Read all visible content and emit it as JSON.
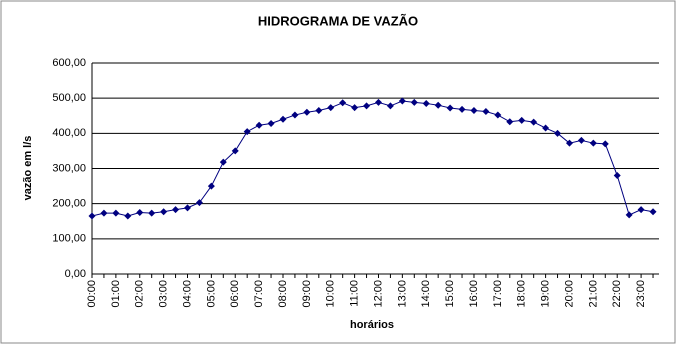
{
  "chart_data": {
    "type": "line",
    "title": "HIDROGRAMA DE VAZÃO",
    "x_label": "horários",
    "y_label": "vazão em l/s",
    "categories": [
      "00:00",
      null,
      "01:00",
      null,
      "02:00",
      null,
      "03:00",
      null,
      "04:00",
      null,
      "05:00",
      null,
      "06:00",
      null,
      "07:00",
      null,
      "08:00",
      null,
      "09:00",
      null,
      "10:00",
      null,
      "11:00",
      null,
      "12:00",
      null,
      "13:00",
      null,
      "14:00",
      null,
      "15:00",
      null,
      "16:00",
      null,
      "17:00",
      null,
      "18:00",
      null,
      "19:00",
      null,
      "20:00",
      null,
      "21:00",
      null,
      "22:00",
      null,
      "23:00",
      null
    ],
    "series": [
      {
        "name": "vazão",
        "color": "#000080",
        "values": [
          165,
          173,
          173,
          165,
          175,
          173,
          177,
          183,
          188,
          203,
          250,
          318,
          350,
          405,
          423,
          428,
          440,
          452,
          460,
          465,
          473,
          487,
          473,
          478,
          488,
          478,
          492,
          488,
          485,
          480,
          472,
          468,
          465,
          462,
          452,
          433,
          437,
          432,
          415,
          400,
          372,
          380,
          372,
          370,
          280,
          168,
          183,
          177
        ]
      }
    ],
    "ylim": [
      0,
      600
    ],
    "yticks": [
      {
        "value": 0,
        "label": "0,00"
      },
      {
        "value": 100,
        "label": "100,00"
      },
      {
        "value": 200,
        "label": "200,00"
      },
      {
        "value": 300,
        "label": "300,00"
      },
      {
        "value": 400,
        "label": "400,00"
      },
      {
        "value": 500,
        "label": "500,00"
      },
      {
        "value": 600,
        "label": "600,00"
      }
    ],
    "grid": true
  }
}
